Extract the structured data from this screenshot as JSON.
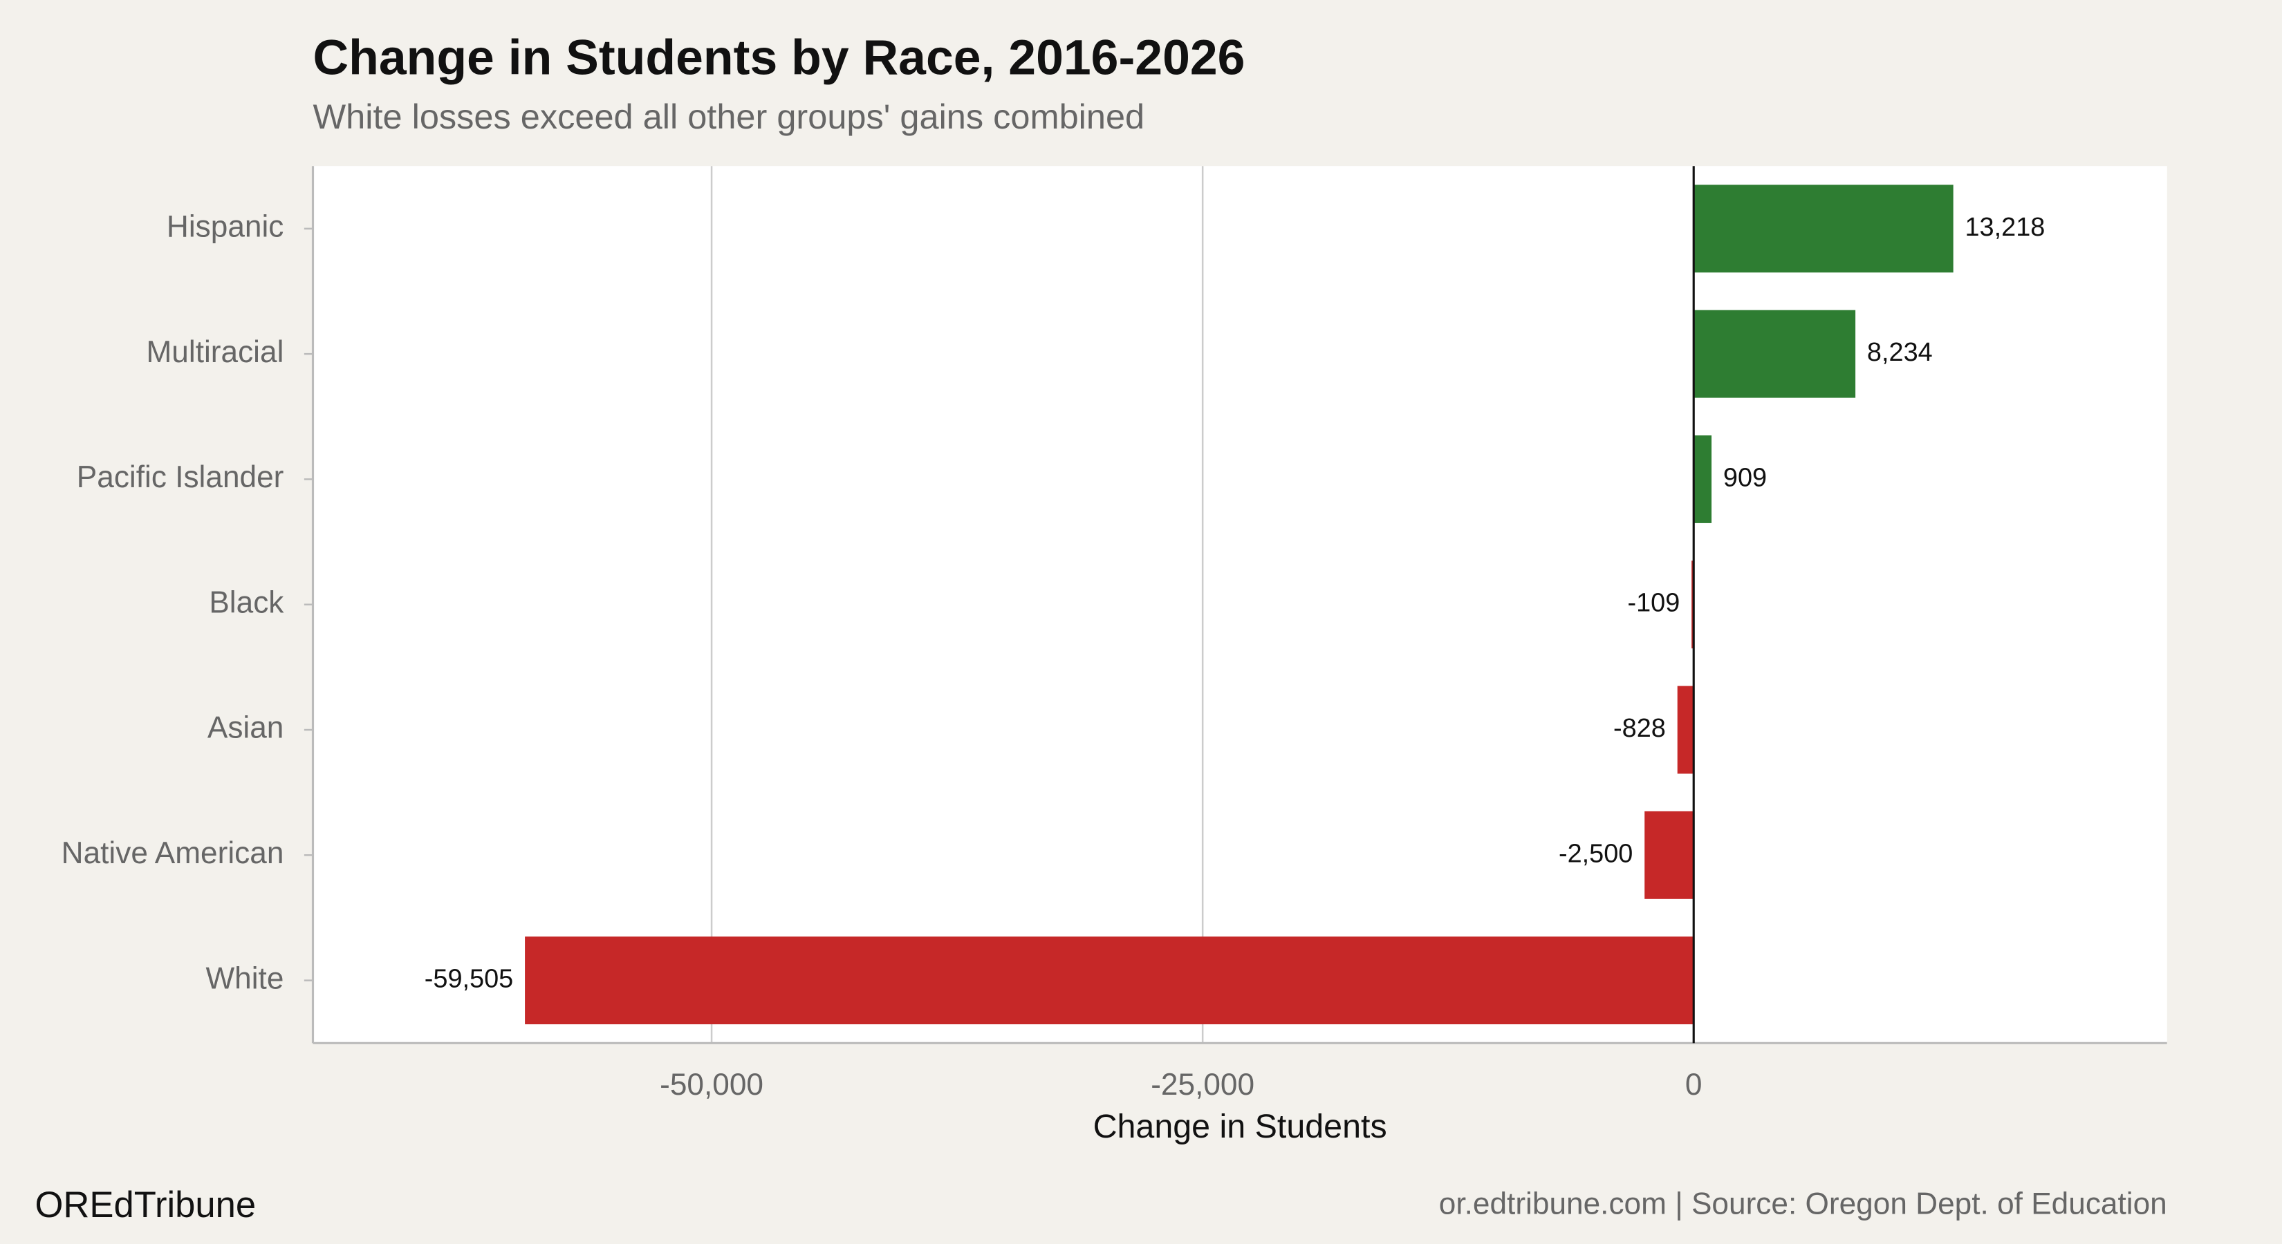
{
  "chart_data": {
    "type": "bar",
    "orientation": "horizontal",
    "title": "Change in Students by Race, 2016-2026",
    "subtitle": "White losses exceed all other groups' gains combined",
    "categories": [
      "Hispanic",
      "Multiracial",
      "Pacific Islander",
      "Black",
      "Asian",
      "Native American",
      "White"
    ],
    "values": [
      13218,
      8234,
      909,
      -109,
      -828,
      -2500,
      -59505
    ],
    "value_labels": [
      "13,218",
      "8,234",
      "909",
      "-109",
      "-828",
      "-2,500",
      "-59,505"
    ],
    "positive_color": "#2e7d32",
    "negative_color": "#c62828",
    "xlim": [
      -70300,
      24100
    ],
    "xticks": [
      {
        "value": -50000,
        "label": "-50,000"
      },
      {
        "value": -25000,
        "label": "-25,000"
      },
      0
    ],
    "xlabel": "Change in Students",
    "grid": true,
    "brand": "OREdTribune",
    "source": "or.edtribune.com | Source: Oregon Dept. of Education"
  }
}
